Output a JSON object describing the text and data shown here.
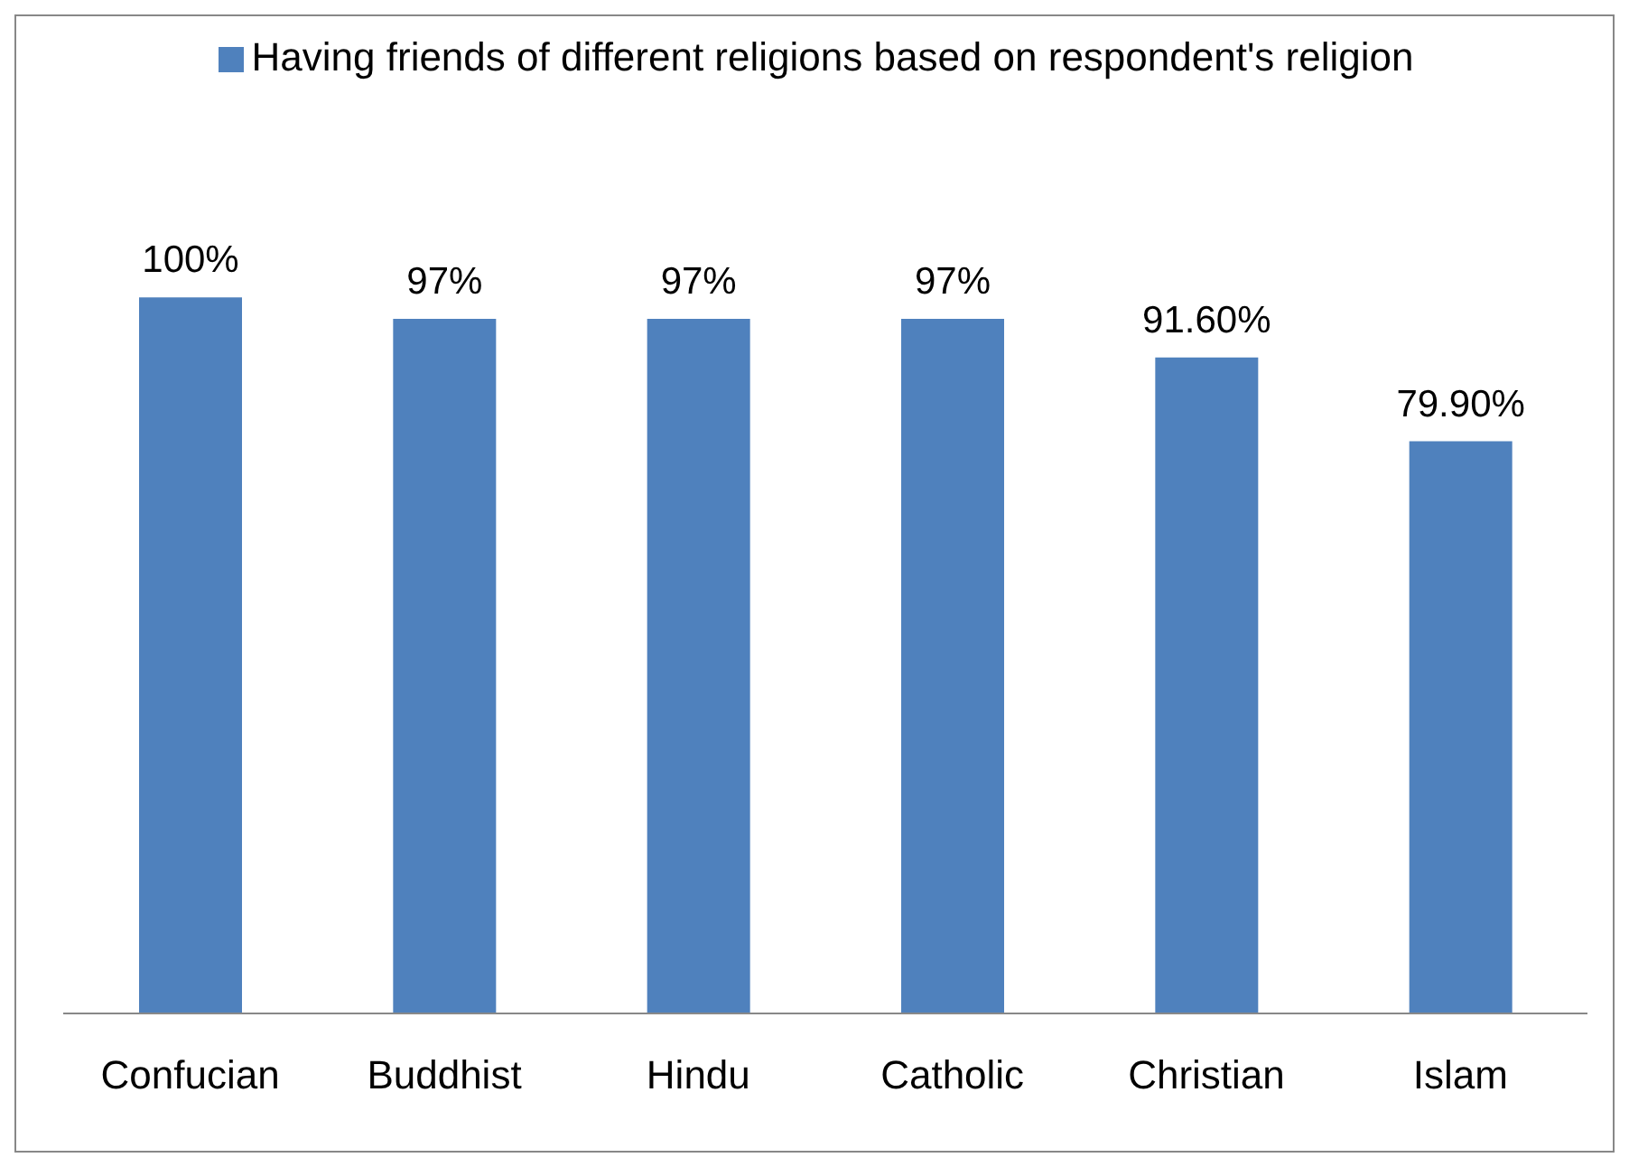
{
  "chart_data": {
    "type": "bar",
    "categories": [
      "Confucian",
      "Buddhist",
      "Hindu",
      "Catholic",
      "Christian",
      "Islam"
    ],
    "series": [
      {
        "name": "Having friends of different religions based on respondent's religion",
        "color": "#4f81bd",
        "values": [
          100,
          97,
          97,
          97,
          91.6,
          79.9
        ],
        "value_labels": [
          "100%",
          "97%",
          "97%",
          "97%",
          "91.60%",
          "79.90%"
        ]
      }
    ],
    "legend": "top"
  }
}
